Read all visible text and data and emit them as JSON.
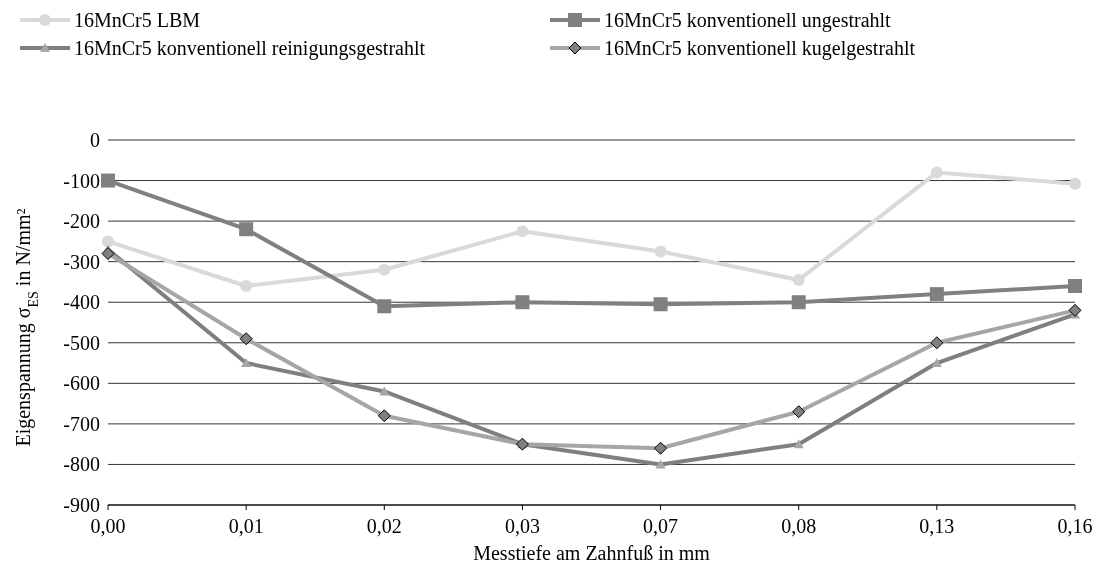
{
  "chart_data": {
    "type": "line",
    "xlabel": "Messtiefe am Zahnfuß in mm",
    "ylabel": "Eigenspannung σ$_{ES}$ in N/mm²",
    "categories": [
      "0,00",
      "0,01",
      "0,02",
      "0,03",
      "0,07",
      "0,08",
      "0,13",
      "0,16"
    ],
    "series": [
      {
        "name": "16MnCr5 LBM",
        "color": "#d9d9d9",
        "marker": "circle",
        "values": [
          -250,
          -360,
          -320,
          -225,
          -275,
          -345,
          -80,
          -108
        ]
      },
      {
        "name": "16MnCr5 konventionell ungestrahlt",
        "color": "#808080",
        "marker": "square",
        "values": [
          -100,
          -220,
          -410,
          -400,
          -405,
          -400,
          -380,
          -360
        ]
      },
      {
        "name": "16MnCr5 konventionell reinigungsgestrahlt",
        "color": "#7f7f7f",
        "marker": "triangle",
        "values": [
          -270,
          -550,
          -620,
          -750,
          -800,
          -750,
          -550,
          -430
        ]
      },
      {
        "name": "16MnCr5 konventionell kugelgestrahlt",
        "color": "#a6a6a6",
        "marker": "diamond",
        "values": [
          -280,
          -490,
          -680,
          -750,
          -760,
          -670,
          -500,
          -420
        ]
      }
    ],
    "ylim": [
      -900,
      0
    ],
    "yticks": [
      0,
      -100,
      -200,
      -300,
      -400,
      -500,
      -600,
      -700,
      -800,
      -900
    ],
    "grid": "y",
    "legend": "top"
  }
}
